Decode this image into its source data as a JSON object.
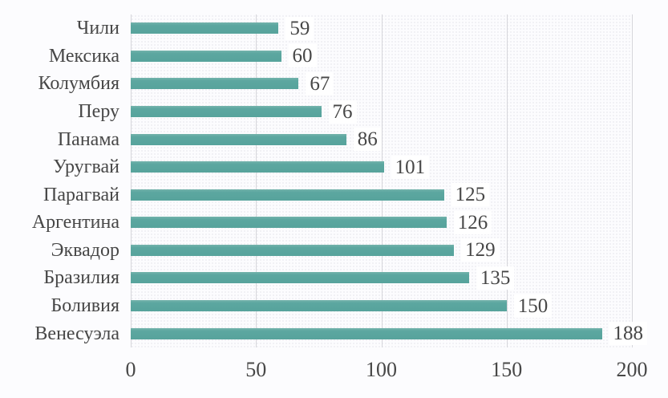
{
  "chart_data": {
    "type": "bar",
    "orientation": "horizontal",
    "title": "",
    "xlabel": "",
    "ylabel": "",
    "categories": [
      "Чили",
      "Мексика",
      "Колумбия",
      "Перу",
      "Панама",
      "Уругвай",
      "Парагвай",
      "Аргентина",
      "Эквадор",
      "Бразилия",
      "Боливия",
      "Венесуэла"
    ],
    "values": [
      59,
      60,
      67,
      76,
      86,
      101,
      125,
      126,
      129,
      135,
      150,
      188
    ],
    "value_labels_shown": true,
    "x_ticks": [
      "0",
      "50",
      "100",
      "150",
      "200"
    ],
    "xlim": [
      0,
      200
    ],
    "grid": "vertical",
    "legend": "none",
    "colors": {
      "bar": "#5ca7a0",
      "gridline": "#d6d6db",
      "text": "#474747",
      "background": "#fcfcfe"
    }
  }
}
